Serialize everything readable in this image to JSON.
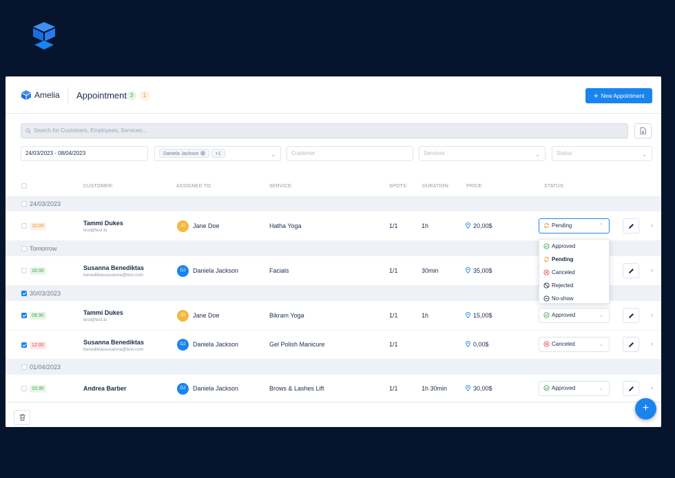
{
  "colors": {
    "accent": "#1a84ee",
    "background": "#06142e",
    "approved": "#3ca544",
    "pending": "#e99a3c",
    "canceled": "#e04b4b"
  },
  "header": {
    "app_name": "Amelia",
    "title": "Appointments",
    "count_approved": "3",
    "count_pending": "1",
    "new_button": "New Appointment"
  },
  "search": {
    "placeholder": "Search for Customers, Employees, Services..."
  },
  "filters": {
    "date_range": "24/03/2023 - 08/04/2023",
    "employee_chip": "Daniela Jackson",
    "employee_more": "+1",
    "customer_placeholder": "Customer",
    "services_placeholder": "Services",
    "status_placeholder": "Status"
  },
  "columns": {
    "customer": "CUSTOMER:",
    "assigned": "ASSIGNED TO:",
    "service": "SERVICE:",
    "spots": "SPOTS:",
    "duration": "DURATION:",
    "price": "PRICE:",
    "status": "STATUS:"
  },
  "groups": [
    {
      "label": "24/03/2023",
      "checked": false
    },
    {
      "label": "Tomorrow",
      "checked": false
    },
    {
      "label": "30/03/2023",
      "checked": true
    },
    {
      "label": "01/04/2023",
      "checked": false
    }
  ],
  "rows": [
    {
      "time": "10:00",
      "time_color": "orange",
      "customer": "Tammi Dukes",
      "email": "test@test.ts",
      "initials": "JD",
      "employee": "Jane Doe",
      "service": "Hatha Yoga",
      "spots": "1/1",
      "duration": "1h",
      "price": "20,00$",
      "status": "Pending",
      "checked": false
    },
    {
      "time": "16:30",
      "time_color": "green",
      "customer": "Susanna Benediktas",
      "email": "benediktassusanna@test.com",
      "initials": "DJ",
      "employee": "Daniela Jackson",
      "service": "Facials",
      "spots": "1/1",
      "duration": "30min",
      "price": "35,00$",
      "status": "",
      "checked": false
    },
    {
      "time": "09:30",
      "time_color": "green",
      "customer": "Tammi Dukes",
      "email": "test@test.ts",
      "initials": "JD",
      "employee": "Jane Doe",
      "service": "Bikram Yoga",
      "spots": "1/1",
      "duration": "1h",
      "price": "15,00$",
      "status": "Approved",
      "checked": true
    },
    {
      "time": "12:00",
      "time_color": "red",
      "customer": "Susanna Benediktas",
      "email": "benediktassusanna@test.com",
      "initials": "DJ",
      "employee": "Daniela Jackson",
      "service": "Gel Polish Manicure",
      "spots": "1/1",
      "duration": "",
      "price": "0,00$",
      "status": "Canceled",
      "checked": true
    },
    {
      "time": "10:30",
      "time_color": "green",
      "customer": "Andrea Barber",
      "email": "",
      "initials": "DJ",
      "employee": "Daniela Jackson",
      "service": "Brows & Lashes Lift",
      "spots": "1/1",
      "duration": "1h 30min",
      "price": "30,00$",
      "status": "Approved",
      "checked": false
    }
  ],
  "status_dropdown": {
    "options": [
      "Approved",
      "Pending",
      "Canceled",
      "Rejected",
      "No-show"
    ],
    "selected": "Pending"
  },
  "icons": {
    "fab": "plus-icon",
    "footer": "trash-icon",
    "export": "export-icon"
  }
}
